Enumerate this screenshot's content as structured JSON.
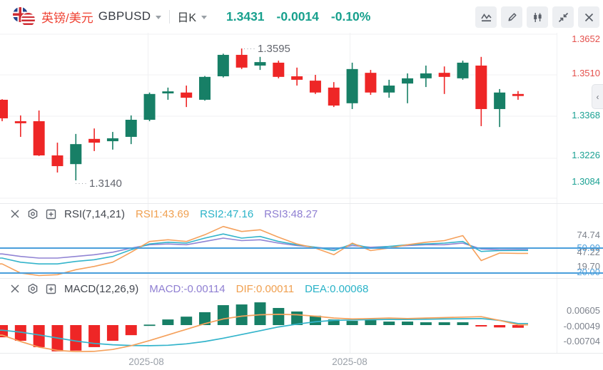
{
  "header": {
    "pair_name_cn": "英镑/美元",
    "symbol": "GBPUSD",
    "timeframe": "日K",
    "price": "1.3431",
    "change": "-0.0014",
    "change_percent": "-0.10%",
    "toolbar_icons": [
      "indicator-wave",
      "draw-pencil",
      "candlestick-style",
      "collapse",
      "close"
    ]
  },
  "colors": {
    "up": "#177f66",
    "down": "#ee2626",
    "price_text": "#17a08d",
    "axis_red": "#e4504c",
    "axis_teal": "#1ba193",
    "rsi1": "#f5a15c",
    "rsi2": "#33b4cb",
    "rsi3": "#9184d4",
    "dif": "#f5a15c",
    "dea": "#33b4cb",
    "level_line": "#4a9edb",
    "grid": "#f0f1f3"
  },
  "main_chart": {
    "y_axis": [
      {
        "text": "1.3652",
        "color": "red"
      },
      {
        "text": "1.3510",
        "color": "red"
      },
      {
        "text": "1.3368",
        "color": "teal"
      },
      {
        "text": "1.3226",
        "color": "teal"
      },
      {
        "text": "1.3084",
        "color": "teal"
      }
    ],
    "high_label": "1.3595",
    "low_label": "1.3140",
    "x_axis": [
      "2025-08",
      "2025-08"
    ],
    "collapse_tab": "‹"
  },
  "rsi_panel": {
    "title": "RSI(7,14,21)",
    "rsi1_label": "RSI1:43.69",
    "rsi2_label": "RSI2:47.16",
    "rsi3_label": "RSI3:48.27",
    "y_axis_gray": [
      "74.74",
      "47.22",
      "19.70"
    ],
    "y_axis_blue": [
      "50.00",
      "20.00"
    ]
  },
  "macd_panel": {
    "title": "MACD(12,26,9)",
    "macd_label": "MACD:-0.00114",
    "dif_label": "DIF:0.00011",
    "dea_label": "DEA:0.00068",
    "y_axis": [
      "0.00605",
      "-0.00049",
      "-0.00704"
    ]
  },
  "chart_data": {
    "type": "candlestick",
    "symbol": "GBPUSD",
    "interval": "daily (日K)",
    "last_price": 1.3431,
    "change": -0.0014,
    "change_percent": -0.1,
    "price_axis_ticks": [
      1.3652,
      1.351,
      1.3368,
      1.3226,
      1.3084
    ],
    "x_axis_labels": [
      "2025-08",
      "2025-08"
    ],
    "candles_ohlc": [
      [
        1.3418,
        1.342,
        1.3344,
        1.3354
      ],
      [
        1.3344,
        1.3364,
        1.329,
        1.3337
      ],
      [
        1.3344,
        1.3381,
        1.3224,
        1.3226
      ],
      [
        1.3226,
        1.327,
        1.3167,
        1.3189
      ],
      [
        1.3196,
        1.33,
        1.314,
        1.3265
      ],
      [
        1.3283,
        1.3319,
        1.3241,
        1.327
      ],
      [
        1.3275,
        1.3307,
        1.3246,
        1.3285
      ],
      [
        1.329,
        1.3364,
        1.3265,
        1.3349
      ],
      [
        1.3349,
        1.3443,
        1.3344,
        1.3438
      ],
      [
        1.344,
        1.346,
        1.3418,
        1.3447
      ],
      [
        1.3443,
        1.3467,
        1.3393,
        1.3425
      ],
      [
        1.3418,
        1.35,
        1.3415,
        1.3497
      ],
      [
        1.3499,
        1.3577,
        1.3495,
        1.3573
      ],
      [
        1.3573,
        1.3595,
        1.3524,
        1.3529
      ],
      [
        1.3536,
        1.3566,
        1.3521,
        1.3548
      ],
      [
        1.3546,
        1.3553,
        1.3492,
        1.3497
      ],
      [
        1.3499,
        1.3529,
        1.3467,
        1.3487
      ],
      [
        1.3484,
        1.3504,
        1.3438,
        1.3443
      ],
      [
        1.346,
        1.3479,
        1.3393,
        1.3398
      ],
      [
        1.3406,
        1.3546,
        1.3386,
        1.3524
      ],
      [
        1.3511,
        1.3521,
        1.3435,
        1.3443
      ],
      [
        1.3443,
        1.3487,
        1.3425,
        1.3467
      ],
      [
        1.3474,
        1.3509,
        1.3406,
        1.3492
      ],
      [
        1.3492,
        1.3536,
        1.3462,
        1.3509
      ],
      [
        1.3511,
        1.3533,
        1.3438,
        1.3497
      ],
      [
        1.3492,
        1.3553,
        1.3487,
        1.3546
      ],
      [
        1.3536,
        1.3566,
        1.3327,
        1.3386
      ],
      [
        1.3386,
        1.3455,
        1.3324,
        1.3443
      ],
      [
        1.3438,
        1.3448,
        1.3418,
        1.3431
      ]
    ],
    "annotations": {
      "high": {
        "candle_index": 13,
        "price": 1.3595
      },
      "low": {
        "candle_index": 4,
        "price": 1.314
      }
    },
    "indicators": [
      {
        "type": "rsi",
        "params": [
          7,
          14,
          21
        ],
        "level_lines": [
          50.0,
          20.0
        ],
        "axis_ticks": [
          74.74,
          47.22,
          19.7
        ],
        "series": [
          {
            "name": "RSI1",
            "current": 43.69,
            "values": [
              31,
              20,
              17,
              18,
              24,
              28,
              33,
              45,
              58,
              60,
              58,
              66,
              76,
              70,
              72,
              63,
              55,
              50,
              42,
              56,
              47,
              50,
              54,
              57,
              59,
              65,
              35,
              44,
              43.69
            ]
          },
          {
            "name": "RSI2",
            "current": 47.16,
            "values": [
              38,
              33,
              31,
              31,
              34,
              36,
              40,
              48,
              55,
              57,
              56,
              62,
              67,
              62,
              64,
              58,
              54,
              51,
              47,
              55,
              50,
              52,
              54,
              55,
              56,
              58,
              46,
              47,
              47.16
            ]
          },
          {
            "name": "RSI3",
            "current": 48.27,
            "values": [
              43,
              40,
              38,
              38,
              40,
              42,
              45,
              50,
              54,
              55,
              54,
              58,
              62,
              59,
              60,
              56,
              53,
              51,
              49,
              53,
              51,
              52,
              53,
              54,
              54,
              56,
              49,
              48,
              48.27
            ]
          }
        ]
      },
      {
        "type": "macd",
        "params": [
          12,
          26,
          9
        ],
        "current": {
          "macd": -0.00114,
          "dif": 0.00011,
          "dea": 0.00068
        },
        "axis_ticks": [
          0.00605,
          -0.00049,
          -0.00704
        ],
        "histogram": [
          -0.0052,
          -0.0067,
          -0.0094,
          -0.0112,
          -0.0109,
          -0.0094,
          -0.0067,
          -0.0043,
          0.0002,
          0.0024,
          0.0036,
          0.0055,
          0.0085,
          0.0088,
          0.0097,
          0.0073,
          0.0058,
          0.004,
          0.0024,
          0.0018,
          0.0021,
          0.0015,
          0.0015,
          0.0012,
          0.0012,
          0.0012,
          -0.0006,
          -0.001,
          -0.00114
        ],
        "dif": [
          -0.0043,
          -0.007,
          -0.0094,
          -0.0108,
          -0.0113,
          -0.0112,
          -0.0104,
          -0.0088,
          -0.0066,
          -0.0042,
          -0.0018,
          0.0006,
          0.0026,
          0.0038,
          0.0044,
          0.0046,
          0.0044,
          0.0038,
          0.003,
          0.0026,
          0.0028,
          0.003,
          0.0028,
          0.003,
          0.0032,
          0.0034,
          0.0036,
          0.002,
          0.00011
        ],
        "dea": [
          -0.0022,
          -0.003,
          -0.0042,
          -0.0055,
          -0.0068,
          -0.0078,
          -0.0084,
          -0.0087,
          -0.0088,
          -0.0086,
          -0.008,
          -0.007,
          -0.0056,
          -0.004,
          -0.0024,
          -0.0008,
          0.0004,
          0.0014,
          0.002,
          0.0022,
          0.0023,
          0.0024,
          0.0024,
          0.0025,
          0.0026,
          0.0027,
          0.0028,
          0.002,
          0.00068
        ]
      }
    ]
  }
}
